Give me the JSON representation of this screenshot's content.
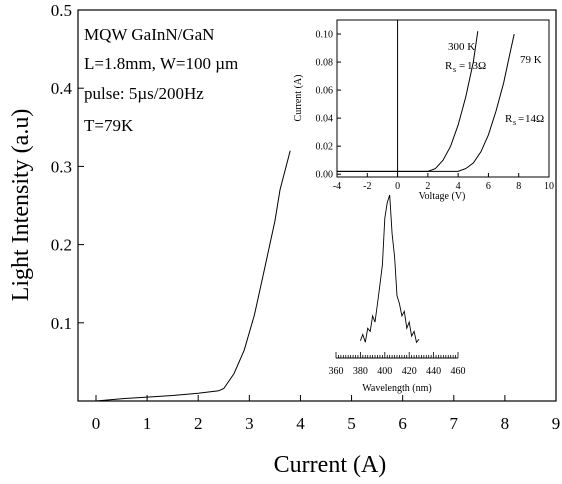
{
  "chart_data": [
    {
      "type": "line",
      "xlabel": "Current (A)",
      "ylabel": "Light Intensity (a.u)",
      "xlim": [
        0,
        9
      ],
      "ylim": [
        0,
        0.5
      ],
      "x_ticks": [
        "0",
        "1",
        "2",
        "3",
        "4",
        "5",
        "6",
        "7",
        "8",
        "9"
      ],
      "y_ticks": [
        "0.1",
        "0.2",
        "0.3",
        "0.4",
        "0.5"
      ],
      "annotations": [
        "MQW GaInN/GaN",
        "L=1.8mm, W=100 µm",
        "pulse: 5µs/200Hz",
        "T=79K"
      ],
      "series": [
        {
          "x": [
            0,
            0.5,
            1.0,
            1.5,
            2.0,
            2.4,
            2.5,
            2.7,
            2.9,
            3.1,
            3.3,
            3.5,
            3.6,
            3.7,
            3.8
          ],
          "y": [
            0.0,
            0.003,
            0.005,
            0.007,
            0.01,
            0.013,
            0.016,
            0.035,
            0.065,
            0.11,
            0.17,
            0.23,
            0.27,
            0.295,
            0.32
          ]
        }
      ],
      "grid": false
    },
    {
      "type": "line",
      "xlabel": "Voltage (V)",
      "ylabel": "Current (A)",
      "xlim": [
        -4,
        10
      ],
      "ylim": [
        -0.002,
        0.11
      ],
      "x_ticks": [
        "-4",
        "-2",
        "0",
        "2",
        "4",
        "6",
        "8",
        "10"
      ],
      "y_ticks": [
        "0.00",
        "0.02",
        "0.04",
        "0.06",
        "0.08",
        "0.10"
      ],
      "labels": [
        "300 K",
        "79 K",
        "13Ω",
        "14Ω"
      ],
      "series": [
        {
          "name": "300 K",
          "x": [
            -4,
            0,
            2,
            2.5,
            3,
            3.5,
            4,
            4.5,
            5,
            5.3
          ],
          "y": [
            0.002,
            0.002,
            0.002,
            0.004,
            0.01,
            0.02,
            0.035,
            0.055,
            0.08,
            0.102
          ]
        },
        {
          "name": "79 K",
          "x": [
            -4,
            0,
            4,
            4.5,
            5,
            5.5,
            6,
            6.5,
            7,
            7.4,
            7.7
          ],
          "y": [
            0.002,
            0.002,
            0.002,
            0.004,
            0.008,
            0.016,
            0.028,
            0.045,
            0.065,
            0.085,
            0.1
          ]
        }
      ],
      "grid": false
    },
    {
      "type": "line",
      "xlabel": "Wavelength (nm)",
      "xlim": [
        360,
        460
      ],
      "x_ticks": [
        "360",
        "380",
        "400",
        "420",
        "440",
        "460"
      ],
      "series": [
        {
          "x": [
            380,
            382,
            384,
            386,
            388,
            390,
            392,
            394,
            396,
            398,
            400,
            402,
            404,
            406,
            408,
            410,
            412,
            414,
            416,
            418,
            420,
            422,
            424,
            426,
            428
          ],
          "y": [
            0.06,
            0.1,
            0.05,
            0.14,
            0.12,
            0.22,
            0.18,
            0.3,
            0.42,
            0.55,
            0.85,
            0.95,
            1.0,
            0.75,
            0.6,
            0.35,
            0.3,
            0.22,
            0.25,
            0.14,
            0.18,
            0.09,
            0.12,
            0.05,
            0.07
          ]
        }
      ],
      "grid": false
    }
  ]
}
